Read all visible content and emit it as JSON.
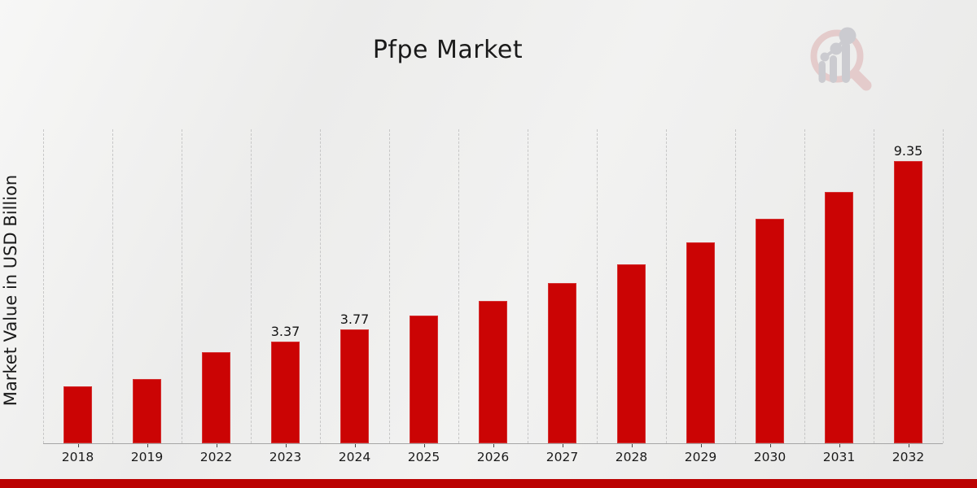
{
  "title": "Pfpe Market",
  "y_axis_label": "Market Value in USD Billion",
  "colors": {
    "bar": "#cb0404",
    "footer": "#bb0101",
    "grid": "#c7c7c7",
    "axis": "#a6a6a6",
    "text": "#1a1a1a",
    "logo_pink": "#e3c6c6",
    "logo_gray": "#c6c6cb"
  },
  "logo": {
    "name": "magnifier-bar-chart-logo"
  },
  "chart_data": {
    "type": "bar",
    "title": "Pfpe Market",
    "xlabel": "",
    "ylabel": "Market Value in USD Billion",
    "categories": [
      "2018",
      "2019",
      "2022",
      "2023",
      "2024",
      "2025",
      "2026",
      "2027",
      "2028",
      "2029",
      "2030",
      "2031",
      "2032"
    ],
    "values": [
      1.9,
      2.13,
      3.01,
      3.37,
      3.77,
      4.22,
      4.73,
      5.3,
      5.93,
      6.65,
      7.44,
      8.34,
      9.35
    ],
    "data_labels": [
      null,
      null,
      null,
      "3.37",
      "3.77",
      null,
      null,
      null,
      null,
      null,
      null,
      null,
      "9.35"
    ],
    "ylim": [
      0,
      10.4
    ],
    "grid": "vertical-dashed-only",
    "legend": "none",
    "bar_color": "#cb0404",
    "note_missing_years": "2020 and 2021 are not shown on the axis"
  }
}
